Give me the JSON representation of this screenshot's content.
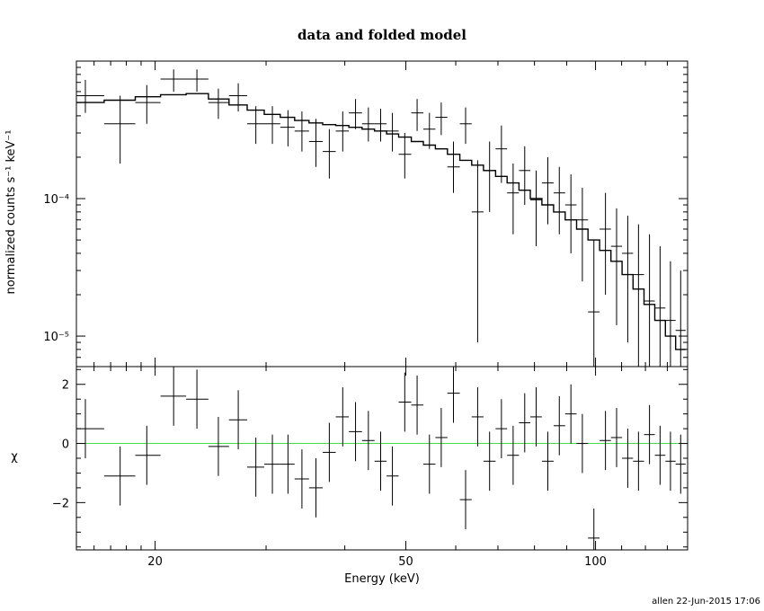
{
  "chart_data": [
    {
      "type": "scatter",
      "title": "data and folded model",
      "ylabel": "normalized counts s⁻¹ keV⁻¹",
      "xlabel": "",
      "xscale": "log",
      "yscale": "log",
      "xlim": [
        15,
        140
      ],
      "ylim": [
        6e-06,
        0.001
      ],
      "y_ticks": [
        {
          "value": 0.0001,
          "label": "10⁻⁴"
        },
        {
          "value": 1e-05,
          "label": "10⁻⁵"
        }
      ],
      "data": {
        "x": [
          15.5,
          17.6,
          19.4,
          21.4,
          23.3,
          25.2,
          27.1,
          28.9,
          30.7,
          32.5,
          34.2,
          36.0,
          37.8,
          39.7,
          41.6,
          43.6,
          45.6,
          47.6,
          49.8,
          52.1,
          54.5,
          56.9,
          59.5,
          62.2,
          65.0,
          67.9,
          70.9,
          74.0,
          77.2,
          80.5,
          84.0,
          87.6,
          91.4,
          95.3,
          99.4,
          103.7,
          108.0,
          112.5,
          117.0,
          121.8,
          126.6,
          131.5,
          136.5
        ],
        "xlo": [
          14.6,
          16.6,
          18.6,
          20.4,
          22.4,
          24.3,
          26.2,
          28.0,
          29.8,
          31.6,
          33.3,
          35.1,
          36.9,
          38.7,
          40.6,
          42.6,
          44.6,
          46.6,
          48.7,
          51.0,
          53.3,
          55.7,
          58.2,
          60.9,
          63.6,
          66.4,
          69.4,
          72.4,
          75.6,
          78.8,
          82.2,
          85.8,
          89.5,
          93.3,
          97.3,
          101.5,
          105.8,
          110.2,
          114.7,
          119.4,
          124.2,
          129.1,
          134.0
        ],
        "xhi": [
          16.6,
          18.6,
          20.4,
          22.4,
          24.3,
          26.2,
          28.0,
          29.8,
          31.6,
          33.3,
          35.1,
          36.9,
          38.7,
          40.6,
          42.6,
          44.6,
          46.6,
          48.7,
          51.0,
          53.3,
          55.7,
          58.2,
          60.9,
          63.6,
          66.4,
          69.4,
          72.4,
          75.6,
          78.8,
          82.2,
          85.8,
          89.5,
          93.3,
          97.3,
          101.5,
          105.8,
          110.2,
          114.7,
          119.4,
          124.2,
          129.1,
          134.0,
          139.0
        ],
        "y": [
          0.00056,
          0.00035,
          0.0005,
          0.00074,
          0.00074,
          0.0005,
          0.00056,
          0.00035,
          0.00035,
          0.00033,
          0.00031,
          0.00026,
          0.00022,
          0.00031,
          0.00042,
          0.00035,
          0.00035,
          0.00031,
          0.00021,
          0.00042,
          0.00032,
          0.00039,
          0.00017,
          0.00035,
          8e-05,
          0.00016,
          0.00023,
          0.00011,
          0.00016,
          9.8e-05,
          0.00013,
          0.00011,
          9e-05,
          7e-05,
          1.5e-05,
          6e-05,
          4.5e-05,
          4e-05,
          2.8e-05,
          1.8e-05,
          1.6e-05,
          1.3e-05,
          1.1e-05
        ],
        "ylow": [
          0.00042,
          0.00018,
          0.00035,
          0.0006,
          0.0006,
          0.00038,
          0.00043,
          0.00025,
          0.00025,
          0.00024,
          0.00022,
          0.00017,
          0.00014,
          0.00022,
          0.00032,
          0.00026,
          0.00026,
          0.00022,
          0.00014,
          0.00031,
          0.00023,
          0.00029,
          0.00011,
          0.00025,
          9e-06,
          8e-05,
          0.00013,
          5.5e-05,
          9e-05,
          4.5e-05,
          6.5e-05,
          5.5e-05,
          4e-05,
          2.5e-05,
          6e-06,
          2e-05,
          1.2e-05,
          9e-06,
          6e-06,
          6e-06,
          6e-06,
          6e-06,
          6e-06
        ],
        "yhigh": [
          0.00073,
          0.00056,
          0.00067,
          0.00087,
          0.00087,
          0.00063,
          0.00069,
          0.00047,
          0.00047,
          0.00044,
          0.00043,
          0.00038,
          0.00032,
          0.00043,
          0.00053,
          0.00046,
          0.00045,
          0.00042,
          0.0003,
          0.00053,
          0.00042,
          0.0005,
          0.00026,
          0.00046,
          0.00019,
          0.00026,
          0.00034,
          0.00018,
          0.00024,
          0.00016,
          0.0002,
          0.00017,
          0.00015,
          0.00012,
          5e-05,
          0.00011,
          8.5e-05,
          7.5e-05,
          6.5e-05,
          5.5e-05,
          4.5e-05,
          3.5e-05,
          3e-05
        ]
      },
      "model": {
        "edges": [
          14.6,
          16.6,
          18.6,
          20.4,
          22.4,
          24.3,
          26.2,
          28.0,
          29.8,
          31.6,
          33.3,
          35.1,
          36.9,
          38.7,
          40.6,
          42.6,
          44.6,
          46.6,
          48.7,
          51.0,
          53.3,
          55.7,
          58.2,
          60.9,
          63.6,
          66.4,
          69.4,
          72.4,
          75.6,
          78.8,
          82.2,
          85.8,
          89.5,
          93.3,
          97.3,
          101.5,
          105.8,
          110.2,
          114.7,
          119.4,
          124.2,
          129.1,
          134.0,
          139.0
        ],
        "values": [
          0.0005,
          0.00052,
          0.00055,
          0.00057,
          0.00058,
          0.00053,
          0.00048,
          0.00044,
          0.00041,
          0.00039,
          0.00037,
          0.000355,
          0.000345,
          0.00034,
          0.00033,
          0.00032,
          0.00031,
          0.000295,
          0.00028,
          0.00026,
          0.000245,
          0.00023,
          0.00021,
          0.00019,
          0.000175,
          0.00016,
          0.000145,
          0.00013,
          0.000115,
          0.0001,
          9e-05,
          8e-05,
          7e-05,
          6e-05,
          5e-05,
          4.2e-05,
          3.5e-05,
          2.8e-05,
          2.2e-05,
          1.7e-05,
          1.3e-05,
          1e-05,
          8e-06
        ]
      }
    },
    {
      "type": "scatter",
      "title": "",
      "ylabel": "χ",
      "xlabel": "Energy (keV)",
      "xscale": "log",
      "xlim": [
        15,
        140
      ],
      "ylim": [
        -3.6,
        2.6
      ],
      "x_ticks": [
        {
          "value": 20,
          "label": "20"
        },
        {
          "value": 50,
          "label": "50"
        },
        {
          "value": 100,
          "label": "100"
        }
      ],
      "y_ticks": [
        {
          "value": 2,
          "label": "2"
        },
        {
          "value": 0,
          "label": "0"
        },
        {
          "value": -2,
          "label": "−2"
        }
      ],
      "zero_line": {
        "value": 0,
        "color": "#44dd44"
      },
      "data": {
        "x": [
          15.5,
          17.6,
          19.4,
          21.4,
          23.3,
          25.2,
          27.1,
          28.9,
          30.7,
          32.5,
          34.2,
          36.0,
          37.8,
          39.7,
          41.6,
          43.6,
          45.6,
          47.6,
          49.8,
          52.1,
          54.5,
          56.9,
          59.5,
          62.2,
          65.0,
          67.9,
          70.9,
          74.0,
          77.2,
          80.5,
          84.0,
          87.6,
          91.4,
          95.3,
          99.4,
          103.7,
          108.0,
          112.5,
          117.0,
          121.8,
          126.6,
          131.5,
          136.5
        ],
        "xlo": [
          14.6,
          16.6,
          18.6,
          20.4,
          22.4,
          24.3,
          26.2,
          28.0,
          29.8,
          31.6,
          33.3,
          35.1,
          36.9,
          38.7,
          40.6,
          42.6,
          44.6,
          46.6,
          48.7,
          51.0,
          53.3,
          55.7,
          58.2,
          60.9,
          63.6,
          66.4,
          69.4,
          72.4,
          75.6,
          78.8,
          82.2,
          85.8,
          89.5,
          93.3,
          97.3,
          101.5,
          105.8,
          110.2,
          114.7,
          119.4,
          124.2,
          129.1,
          134.0
        ],
        "xhi": [
          16.6,
          18.6,
          20.4,
          22.4,
          24.3,
          26.2,
          28.0,
          29.8,
          31.6,
          33.3,
          35.1,
          36.9,
          38.7,
          40.6,
          42.6,
          44.6,
          46.6,
          48.7,
          51.0,
          53.3,
          55.7,
          58.2,
          60.9,
          63.6,
          66.4,
          69.4,
          72.4,
          75.6,
          78.8,
          82.2,
          85.8,
          89.5,
          93.3,
          97.3,
          101.5,
          105.8,
          110.2,
          114.7,
          119.4,
          124.2,
          129.1,
          134.0,
          139.0
        ],
        "y": [
          0.5,
          -1.1,
          -0.4,
          1.6,
          1.5,
          -0.1,
          0.8,
          -0.8,
          -0.7,
          -0.7,
          -1.2,
          -1.5,
          -0.3,
          0.9,
          0.4,
          0.1,
          -0.6,
          -1.1,
          1.4,
          1.3,
          -0.7,
          0.2,
          1.7,
          -1.9,
          0.9,
          -0.6,
          0.5,
          -0.4,
          0.7,
          0.9,
          -0.6,
          0.6,
          1.0,
          0.0,
          -3.2,
          0.1,
          0.2,
          -0.5,
          -0.6,
          0.3,
          -0.4,
          -0.6,
          -0.7
        ],
        "err": [
          1.0,
          1.0,
          1.0,
          1.0,
          1.0,
          1.0,
          1.0,
          1.0,
          1.0,
          1.0,
          1.0,
          1.0,
          1.0,
          1.0,
          1.0,
          1.0,
          1.0,
          1.0,
          1.0,
          1.0,
          1.0,
          1.0,
          1.0,
          1.0,
          1.0,
          1.0,
          1.0,
          1.0,
          1.0,
          1.0,
          1.0,
          1.0,
          1.0,
          1.0,
          1.0,
          1.0,
          1.0,
          1.0,
          1.0,
          1.0,
          1.0,
          1.0,
          1.0
        ]
      }
    }
  ],
  "footer": {
    "text": "allen 22-Jun-2015 17:06"
  }
}
